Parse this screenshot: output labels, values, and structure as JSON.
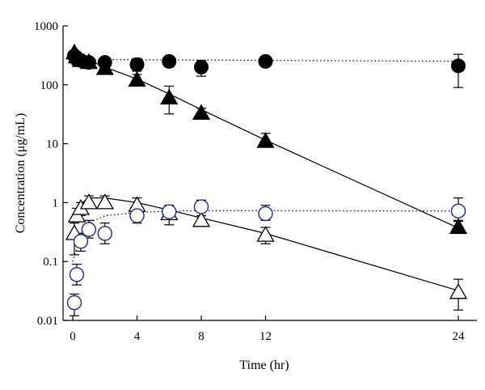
{
  "chart_data": {
    "type": "scatter",
    "xlabel": "Time (hr)",
    "ylabel": "Concentration (μg/mL)",
    "yscale": "log",
    "xlim": [
      0,
      24
    ],
    "ylim": [
      0.01,
      1000
    ],
    "xticks": [
      0,
      4,
      8,
      12,
      24
    ],
    "xtick_labels": [
      "0",
      "4",
      "8",
      "12",
      "24"
    ],
    "yticks": [
      0.01,
      0.1,
      1,
      10,
      100,
      1000
    ],
    "ytick_labels": [
      "0.01",
      "0.1",
      "1",
      "10",
      "100",
      "1000"
    ],
    "grid": false,
    "legend": "none",
    "series": [
      {
        "marker": "filled-circle",
        "color": "#000000",
        "fit_line": "dotted",
        "points": [
          {
            "x": 0.1,
            "y": 310,
            "lo": 290,
            "hi": 330
          },
          {
            "x": 0.25,
            "y": 270,
            "lo": 250,
            "hi": 300
          },
          {
            "x": 0.5,
            "y": 260,
            "lo": 230,
            "hi": 290
          },
          {
            "x": 1,
            "y": 240,
            "lo": 200,
            "hi": 280
          },
          {
            "x": 2,
            "y": 240,
            "lo": 200,
            "hi": 280
          },
          {
            "x": 4,
            "y": 220,
            "lo": 170,
            "hi": 280
          },
          {
            "x": 6,
            "y": 250,
            "lo": 200,
            "hi": 300
          },
          {
            "x": 8,
            "y": 200,
            "lo": 140,
            "hi": 260
          },
          {
            "x": 12,
            "y": 250,
            "lo": 230,
            "hi": 270
          },
          {
            "x": 24,
            "y": 210,
            "lo": 90,
            "hi": 330
          }
        ]
      },
      {
        "marker": "filled-triangle",
        "color": "#000000",
        "fit_line": "solid",
        "points": [
          {
            "x": 0.1,
            "y": 350,
            "lo": 320,
            "hi": 380
          },
          {
            "x": 0.25,
            "y": 300,
            "lo": 270,
            "hi": 330
          },
          {
            "x": 0.5,
            "y": 260,
            "lo": 230,
            "hi": 290
          },
          {
            "x": 1,
            "y": 240,
            "lo": 200,
            "hi": 280
          },
          {
            "x": 2,
            "y": 190,
            "lo": 160,
            "hi": 220
          },
          {
            "x": 4,
            "y": 120,
            "lo": 100,
            "hi": 150
          },
          {
            "x": 6,
            "y": 60,
            "lo": 32,
            "hi": 95
          },
          {
            "x": 8,
            "y": 33,
            "lo": 28,
            "hi": 40
          },
          {
            "x": 12,
            "y": 11,
            "lo": 9,
            "hi": 15
          },
          {
            "x": 24,
            "y": 0.38,
            "lo": 0.3,
            "hi": 0.48
          }
        ]
      },
      {
        "marker": "open-triangle",
        "color": "#000000",
        "fit_line": "solid",
        "points": [
          {
            "x": 0.1,
            "y": 0.3,
            "lo": 0.13,
            "hi": 0.45
          },
          {
            "x": 0.25,
            "y": 0.6,
            "lo": 0.5,
            "hi": 0.8
          },
          {
            "x": 0.5,
            "y": 0.8,
            "lo": 0.6,
            "hi": 1.0
          },
          {
            "x": 1,
            "y": 1.0,
            "lo": 0.8,
            "hi": 1.3
          },
          {
            "x": 2,
            "y": 1.0,
            "lo": 0.8,
            "hi": 1.3
          },
          {
            "x": 4,
            "y": 0.9,
            "lo": 0.7,
            "hi": 1.2
          },
          {
            "x": 6,
            "y": 0.65,
            "lo": 0.42,
            "hi": 0.8
          },
          {
            "x": 8,
            "y": 0.5,
            "lo": 0.45,
            "hi": 0.6
          },
          {
            "x": 12,
            "y": 0.28,
            "lo": 0.2,
            "hi": 0.38
          },
          {
            "x": 24,
            "y": 0.03,
            "lo": 0.015,
            "hi": 0.05
          }
        ]
      },
      {
        "marker": "open-circle",
        "color": "#1f2a80",
        "fit_line": "dotted",
        "points": [
          {
            "x": 0.1,
            "y": 0.02,
            "lo": 0.012,
            "hi": 0.028
          },
          {
            "x": 0.25,
            "y": 0.06,
            "lo": 0.04,
            "hi": 0.09
          },
          {
            "x": 0.5,
            "y": 0.22,
            "lo": 0.15,
            "hi": 0.3
          },
          {
            "x": 1,
            "y": 0.35,
            "lo": 0.25,
            "hi": 0.5
          },
          {
            "x": 2,
            "y": 0.3,
            "lo": 0.2,
            "hi": 0.45
          },
          {
            "x": 4,
            "y": 0.6,
            "lo": 0.45,
            "hi": 0.8
          },
          {
            "x": 6,
            "y": 0.7,
            "lo": 0.55,
            "hi": 0.9
          },
          {
            "x": 8,
            "y": 0.85,
            "lo": 0.6,
            "hi": 1.1
          },
          {
            "x": 12,
            "y": 0.65,
            "lo": 0.5,
            "hi": 0.9
          },
          {
            "x": 24,
            "y": 0.72,
            "lo": 0.5,
            "hi": 1.2
          }
        ]
      }
    ],
    "fit_lines": [
      {
        "style": "dotted",
        "points": [
          [
            0,
            270
          ],
          [
            24,
            250
          ]
        ]
      },
      {
        "style": "solid",
        "points": [
          [
            0,
            340
          ],
          [
            2,
            200
          ],
          [
            4,
            125
          ],
          [
            6,
            70
          ],
          [
            8,
            38
          ],
          [
            12,
            11.5
          ],
          [
            24,
            0.37
          ]
        ]
      },
      {
        "style": "solid",
        "points": [
          [
            0,
            0.45
          ],
          [
            0.5,
            0.95
          ],
          [
            1,
            1.2
          ],
          [
            2,
            1.2
          ],
          [
            4,
            1.0
          ],
          [
            6,
            0.75
          ],
          [
            8,
            0.55
          ],
          [
            12,
            0.3
          ],
          [
            24,
            0.032
          ]
        ]
      },
      {
        "style": "dotted",
        "points": [
          [
            0,
            0.1
          ],
          [
            0.5,
            0.3
          ],
          [
            1,
            0.45
          ],
          [
            2,
            0.6
          ],
          [
            4,
            0.68
          ],
          [
            6,
            0.72
          ],
          [
            8,
            0.73
          ],
          [
            12,
            0.73
          ],
          [
            24,
            0.72
          ]
        ]
      }
    ]
  }
}
